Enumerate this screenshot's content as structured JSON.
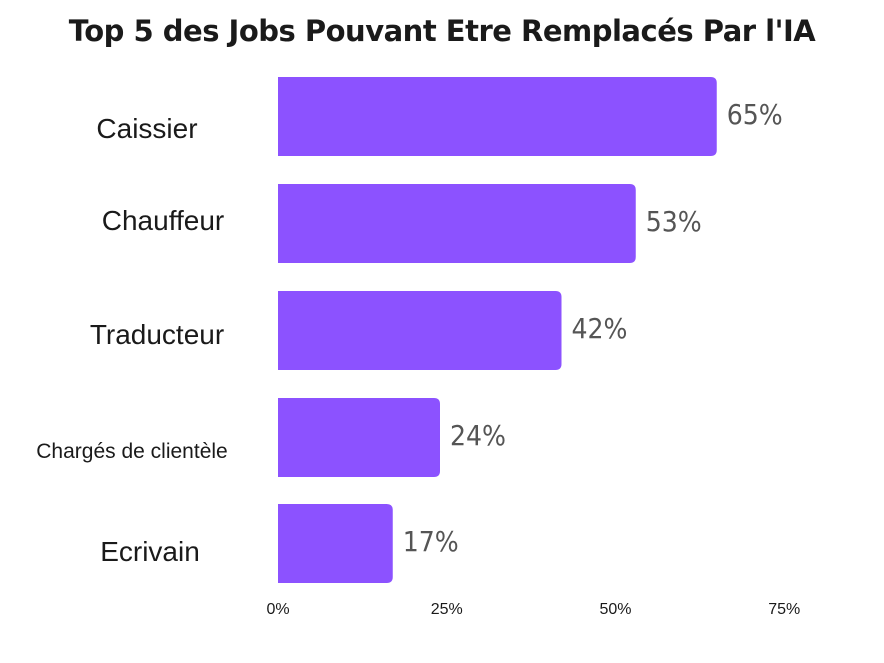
{
  "chart_data": {
    "type": "bar",
    "orientation": "horizontal",
    "title": "Top 5 des Jobs Pouvant Etre Remplacés Par l'IA",
    "categories": [
      "Caissier",
      "Chauffeur",
      "Traducteur",
      "Chargés de clientèle",
      "Ecrivain"
    ],
    "values": [
      65,
      53,
      42,
      24,
      17
    ],
    "value_labels": [
      "65%",
      "53%",
      "42%",
      "24%",
      "17%"
    ],
    "xlim": [
      0,
      75
    ],
    "x_ticks": [
      0,
      25,
      50,
      75
    ],
    "x_tick_labels": [
      "0%",
      "25%",
      "50%",
      "75%"
    ],
    "bar_color": "#8c52ff",
    "grid": false,
    "legend": "none"
  }
}
